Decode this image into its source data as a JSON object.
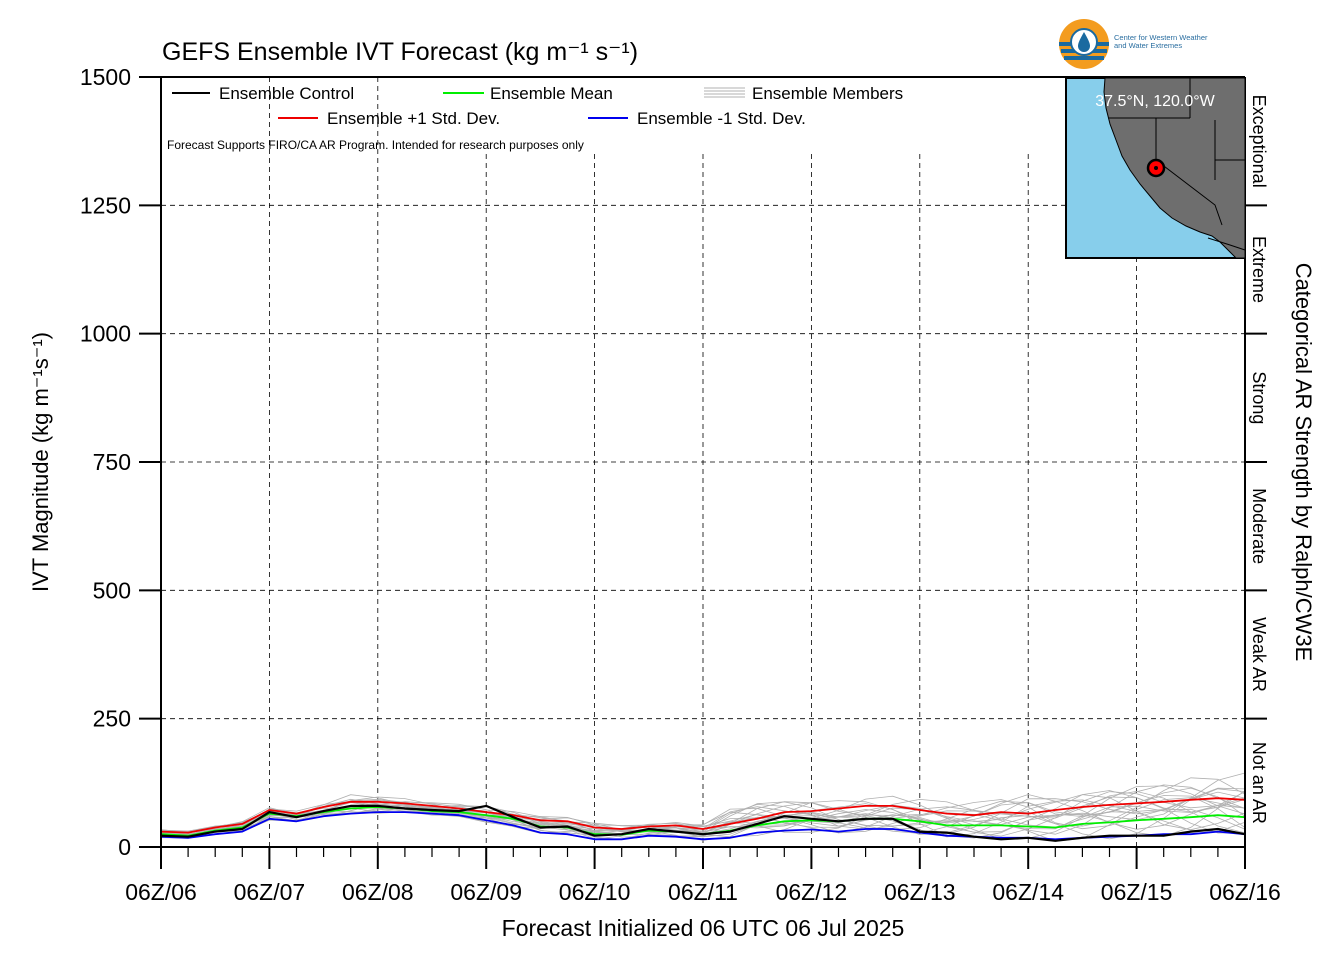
{
  "chart_data": {
    "type": "line",
    "title": "GEFS Ensemble IVT Forecast (kg m⁻¹ s⁻¹)",
    "xlabel": "Forecast Initialized 06 UTC 06 Jul 2025",
    "ylabel": "IVT Magnitude (kg m⁻¹s⁻¹)",
    "right_axis_label": "Categorical AR Strength by Ralph/CW3E",
    "ylim": [
      0,
      1500
    ],
    "yticks": [
      0,
      250,
      500,
      750,
      1000,
      1250,
      1500
    ],
    "xlim": [
      0,
      240
    ],
    "xtick_hours": [
      0,
      24,
      48,
      72,
      96,
      120,
      144,
      168,
      192,
      216,
      240
    ],
    "xtick_labels": [
      "06Z/06",
      "06Z/07",
      "06Z/08",
      "06Z/09",
      "06Z/10",
      "06Z/11",
      "06Z/12",
      "06Z/13",
      "06Z/14",
      "06Z/15",
      "06Z/16"
    ],
    "categories_right": [
      {
        "label": "Not an AR",
        "range": [
          0,
          250
        ]
      },
      {
        "label": "Weak AR",
        "range": [
          250,
          500
        ]
      },
      {
        "label": "Moderate",
        "range": [
          500,
          750
        ]
      },
      {
        "label": "Strong",
        "range": [
          750,
          1000
        ]
      },
      {
        "label": "Extreme",
        "range": [
          1000,
          1250
        ]
      },
      {
        "label": "Exceptional",
        "range": [
          1250,
          1500
        ]
      }
    ],
    "grid": true,
    "legend_position": "top-left",
    "note": "Forecast Supports FIRO/CA AR Program. Intended for research purposes only",
    "x": [
      0,
      6,
      12,
      18,
      24,
      30,
      36,
      42,
      48,
      54,
      60,
      66,
      72,
      78,
      84,
      90,
      96,
      102,
      108,
      114,
      120,
      126,
      132,
      138,
      144,
      150,
      156,
      162,
      168,
      174,
      180,
      186,
      192,
      198,
      204,
      210,
      216,
      222,
      228,
      234,
      240
    ],
    "series": [
      {
        "name": "Ensemble Control",
        "color": "#000000",
        "values": [
          22,
          20,
          30,
          35,
          68,
          58,
          70,
          80,
          80,
          75,
          72,
          70,
          80,
          58,
          38,
          40,
          22,
          25,
          35,
          30,
          25,
          30,
          45,
          60,
          55,
          50,
          55,
          55,
          30,
          28,
          20,
          15,
          18,
          12,
          18,
          22,
          22,
          22,
          30,
          35,
          25
        ]
      },
      {
        "name": "Ensemble Mean",
        "color": "#00ee00",
        "values": [
          25,
          22,
          32,
          38,
          65,
          60,
          68,
          75,
          78,
          75,
          70,
          68,
          62,
          55,
          40,
          38,
          25,
          24,
          32,
          30,
          25,
          32,
          42,
          50,
          52,
          50,
          55,
          55,
          50,
          42,
          42,
          42,
          40,
          38,
          45,
          48,
          52,
          55,
          58,
          62,
          58
        ]
      },
      {
        "name": "Ensemble +1 Std. Dev.",
        "color": "#ee0000",
        "values": [
          30,
          28,
          38,
          45,
          72,
          65,
          78,
          88,
          88,
          85,
          80,
          75,
          68,
          62,
          52,
          50,
          38,
          35,
          40,
          42,
          35,
          45,
          55,
          68,
          70,
          75,
          80,
          80,
          72,
          65,
          62,
          68,
          65,
          72,
          78,
          82,
          85,
          88,
          92,
          95,
          92
        ]
      },
      {
        "name": "Ensemble -1 Std. Dev.",
        "color": "#0000ee",
        "values": [
          20,
          18,
          25,
          30,
          55,
          50,
          60,
          65,
          68,
          68,
          65,
          62,
          52,
          42,
          28,
          25,
          15,
          15,
          22,
          20,
          15,
          18,
          28,
          32,
          34,
          30,
          35,
          35,
          28,
          22,
          20,
          18,
          18,
          15,
          18,
          20,
          22,
          25,
          25,
          30,
          25
        ]
      }
    ],
    "members_label": "Ensemble Members",
    "members_color": "#b0b0b0",
    "members_spread": {
      "low": [
        18,
        16,
        24,
        28,
        52,
        48,
        58,
        62,
        65,
        66,
        62,
        58,
        48,
        38,
        25,
        22,
        12,
        12,
        20,
        18,
        12,
        14,
        22,
        25,
        28,
        25,
        28,
        28,
        20,
        15,
        15,
        12,
        14,
        10,
        12,
        15,
        16,
        18,
        20,
        22,
        18
      ],
      "high": [
        35,
        32,
        42,
        50,
        78,
        70,
        85,
        102,
        100,
        95,
        88,
        85,
        82,
        72,
        62,
        58,
        48,
        42,
        45,
        48,
        45,
        75,
        88,
        92,
        95,
        92,
        98,
        100,
        95,
        90,
        88,
        98,
        105,
        100,
        108,
        115,
        120,
        125,
        135,
        142,
        145
      ]
    },
    "inset": {
      "label": "37.5°N, 120.0°W"
    }
  },
  "logo": {
    "text_line1": "Center for Western Weather",
    "text_line2": "and Water Extremes"
  }
}
